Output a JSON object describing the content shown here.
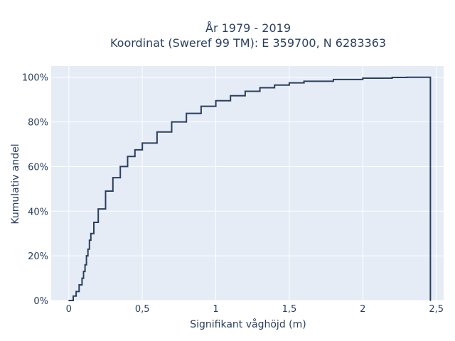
{
  "chart_data": {
    "type": "line",
    "line_shape": "step",
    "title": "År 1979 - 2019",
    "subtitle": "Koordinat (Sweref 99 TM): E 359700, N 6283363",
    "xlabel": "Signifikant våghöjd (m)",
    "ylabel": "Kumulativ andel",
    "xlim": [
      -0.12,
      2.55
    ],
    "ylim": [
      0,
      1.05
    ],
    "x_ticks": [
      0,
      0.5,
      1,
      1.5,
      2,
      2.5
    ],
    "x_tick_labels": [
      "0",
      "0,5",
      "1",
      "1,5",
      "2",
      "2,5"
    ],
    "y_ticks": [
      0,
      0.2,
      0.4,
      0.6,
      0.8,
      1.0
    ],
    "y_tick_labels": [
      "0%",
      "20%",
      "40%",
      "60%",
      "80%",
      "100%"
    ],
    "grid": true,
    "legend": "none",
    "series": [
      {
        "x": [
          0,
          0.03,
          0.05,
          0.07,
          0.09,
          0.1,
          0.11,
          0.12,
          0.13,
          0.14,
          0.15,
          0.17,
          0.2,
          0.25,
          0.3,
          0.35,
          0.4,
          0.45,
          0.5,
          0.6,
          0.7,
          0.8,
          0.9,
          1.0,
          1.1,
          1.2,
          1.3,
          1.4,
          1.5,
          1.6,
          1.8,
          2.0,
          2.2,
          2.3,
          2.45,
          2.46
        ],
        "y": [
          0,
          0.02,
          0.04,
          0.07,
          0.1,
          0.13,
          0.16,
          0.2,
          0.23,
          0.27,
          0.3,
          0.35,
          0.41,
          0.49,
          0.55,
          0.6,
          0.645,
          0.675,
          0.705,
          0.755,
          0.8,
          0.838,
          0.87,
          0.895,
          0.917,
          0.937,
          0.953,
          0.965,
          0.975,
          0.982,
          0.99,
          0.996,
          0.999,
          1.0,
          1.0,
          0
        ]
      }
    ],
    "colors": {
      "line": "#2a3f5f",
      "plot_bg": "#e5ecf6",
      "grid": "#ffffff",
      "text": "#2a3f5f"
    }
  }
}
